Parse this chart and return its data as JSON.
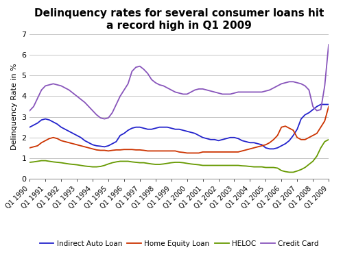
{
  "title": "Delinquency rates for several consumer loans hit\na record high in Q1 2009",
  "ylabel": "Delinquency Rate in %",
  "ylim": [
    0,
    7
  ],
  "yticks": [
    0,
    1,
    2,
    3,
    4,
    5,
    6,
    7
  ],
  "n_quarters": 77,
  "start_year": 1990,
  "indirect_auto": [
    2.5,
    2.6,
    2.7,
    2.85,
    2.9,
    2.85,
    2.75,
    2.65,
    2.5,
    2.4,
    2.3,
    2.2,
    2.1,
    2.0,
    1.85,
    1.75,
    1.65,
    1.6,
    1.58,
    1.55,
    1.6,
    1.7,
    1.8,
    2.1,
    2.2,
    2.35,
    2.45,
    2.5,
    2.5,
    2.45,
    2.4,
    2.4,
    2.45,
    2.5,
    2.5,
    2.5,
    2.45,
    2.4,
    2.4,
    2.35,
    2.3,
    2.25,
    2.2,
    2.1,
    2.0,
    1.95,
    1.9,
    1.9,
    1.85,
    1.9,
    1.95,
    2.0,
    2.0,
    1.95,
    1.85,
    1.8,
    1.75,
    1.75,
    1.7,
    1.65,
    1.5,
    1.45,
    1.45,
    1.5,
    1.6,
    1.7,
    1.85,
    2.1,
    2.4,
    2.9,
    3.1,
    3.2,
    3.35,
    3.5,
    3.6,
    3.6,
    3.6
  ],
  "home_equity": [
    1.5,
    1.55,
    1.6,
    1.75,
    1.85,
    1.95,
    2.0,
    1.95,
    1.85,
    1.8,
    1.75,
    1.7,
    1.65,
    1.6,
    1.55,
    1.5,
    1.45,
    1.4,
    1.38,
    1.38,
    1.35,
    1.38,
    1.4,
    1.4,
    1.42,
    1.42,
    1.42,
    1.4,
    1.4,
    1.38,
    1.35,
    1.35,
    1.35,
    1.35,
    1.35,
    1.35,
    1.35,
    1.35,
    1.3,
    1.28,
    1.25,
    1.25,
    1.25,
    1.25,
    1.3,
    1.3,
    1.3,
    1.3,
    1.3,
    1.3,
    1.3,
    1.3,
    1.3,
    1.3,
    1.35,
    1.4,
    1.45,
    1.5,
    1.55,
    1.6,
    1.65,
    1.75,
    1.9,
    2.1,
    2.5,
    2.55,
    2.45,
    2.35,
    2.0,
    1.9,
    1.9,
    2.0,
    2.1,
    2.2,
    2.5,
    2.8,
    3.5
  ],
  "heloc": [
    0.8,
    0.82,
    0.85,
    0.88,
    0.88,
    0.85,
    0.82,
    0.8,
    0.78,
    0.75,
    0.72,
    0.7,
    0.68,
    0.65,
    0.62,
    0.6,
    0.58,
    0.58,
    0.6,
    0.65,
    0.72,
    0.78,
    0.82,
    0.85,
    0.85,
    0.85,
    0.82,
    0.8,
    0.78,
    0.78,
    0.75,
    0.72,
    0.7,
    0.7,
    0.72,
    0.75,
    0.78,
    0.8,
    0.8,
    0.78,
    0.75,
    0.72,
    0.7,
    0.68,
    0.65,
    0.65,
    0.65,
    0.65,
    0.65,
    0.65,
    0.65,
    0.65,
    0.65,
    0.65,
    0.63,
    0.62,
    0.6,
    0.58,
    0.58,
    0.58,
    0.55,
    0.55,
    0.55,
    0.52,
    0.4,
    0.35,
    0.32,
    0.32,
    0.38,
    0.45,
    0.55,
    0.7,
    0.85,
    1.1,
    1.5,
    1.8,
    1.9
  ],
  "credit_card": [
    3.3,
    3.5,
    3.9,
    4.3,
    4.5,
    4.55,
    4.6,
    4.55,
    4.5,
    4.4,
    4.3,
    4.15,
    4.0,
    3.85,
    3.7,
    3.5,
    3.3,
    3.1,
    2.95,
    2.9,
    2.95,
    3.2,
    3.6,
    4.0,
    4.3,
    4.6,
    5.2,
    5.4,
    5.45,
    5.3,
    5.1,
    4.8,
    4.65,
    4.55,
    4.5,
    4.4,
    4.3,
    4.2,
    4.15,
    4.1,
    4.1,
    4.2,
    4.3,
    4.35,
    4.35,
    4.3,
    4.25,
    4.2,
    4.15,
    4.1,
    4.1,
    4.1,
    4.15,
    4.2,
    4.2,
    4.2,
    4.2,
    4.2,
    4.2,
    4.2,
    4.25,
    4.3,
    4.4,
    4.5,
    4.6,
    4.65,
    4.7,
    4.7,
    4.65,
    4.6,
    4.5,
    4.3,
    3.5,
    3.3,
    3.35,
    4.5,
    6.5
  ],
  "colors": {
    "indirect_auto": "#2222cc",
    "home_equity": "#cc3300",
    "heloc": "#669900",
    "credit_card": "#8855bb"
  },
  "legend_labels": [
    "Indirect Auto Loan",
    "Home Equity Loan",
    "HELOC",
    "Credit Card"
  ],
  "background_color": "#ffffff",
  "grid_color": "#bbbbbb",
  "title_fontsize": 11,
  "axis_label_fontsize": 8,
  "tick_fontsize": 7
}
